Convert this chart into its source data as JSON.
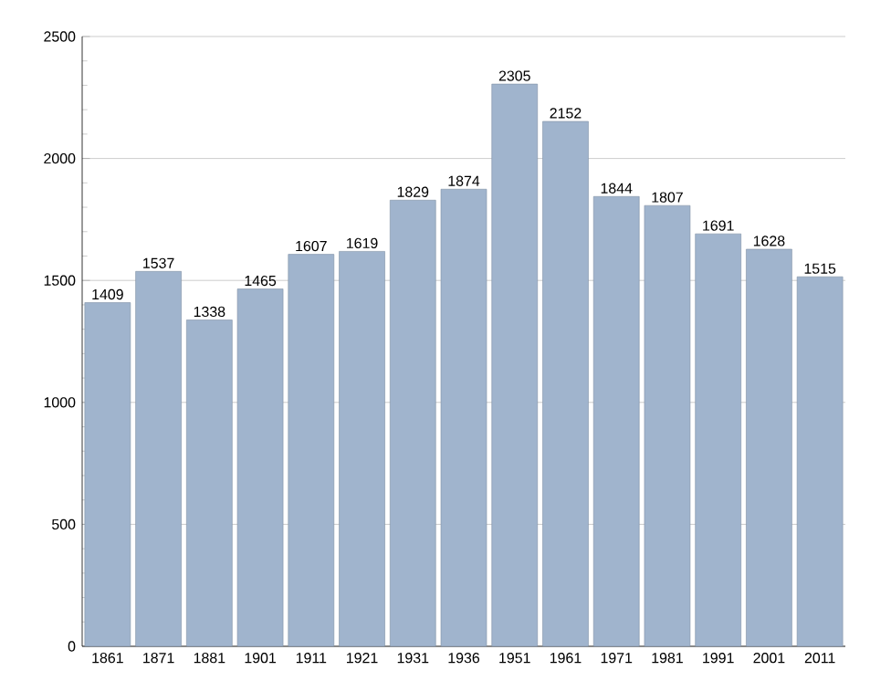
{
  "chart_data": {
    "type": "bar",
    "categories": [
      "1861",
      "1871",
      "1881",
      "1901",
      "1911",
      "1921",
      "1931",
      "1936",
      "1951",
      "1961",
      "1971",
      "1981",
      "1991",
      "2001",
      "2011"
    ],
    "values": [
      1409,
      1537,
      1338,
      1465,
      1607,
      1619,
      1829,
      1874,
      2305,
      2152,
      1844,
      1807,
      1691,
      1628,
      1515
    ],
    "color": "#a0b4cd",
    "ylim": [
      0,
      2500
    ],
    "yticks": [
      0,
      500,
      1000,
      1500,
      2000,
      2500
    ],
    "grid": "y",
    "data_labels": true
  }
}
